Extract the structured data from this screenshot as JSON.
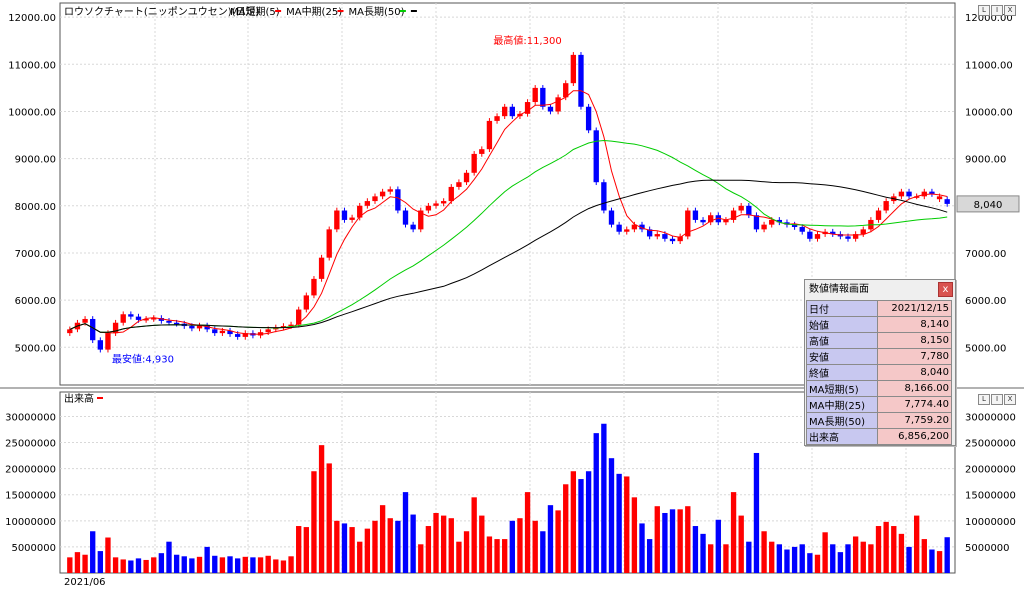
{
  "price_pane": {
    "title": "ロウソクチャート(ニッポンユウセン)(日足)",
    "legend": [
      {
        "label": "MA短期(5)",
        "color": "#ff0000"
      },
      {
        "label": "MA中期(25)",
        "color": "#ff0000"
      },
      {
        "label": "MA長期(50)",
        "color": "#00cc00"
      }
    ],
    "legend_tail_color": "#000000",
    "high_label": "最高値:11,300",
    "low_label": "最安値:4,930",
    "last_price": "8,040",
    "axis_ticks": [
      "12000.00",
      "11000.00",
      "10000.00",
      "9000.00",
      "8000.00",
      "7000.00",
      "6000.00",
      "5000.00"
    ]
  },
  "volume_pane": {
    "title": "出来高",
    "axis_ticks": [
      "30000000",
      "25000000",
      "20000000",
      "15000000",
      "10000000",
      "5000000"
    ]
  },
  "x_axis": {
    "start_label": "2021/06"
  },
  "window_buttons": [
    "L",
    "I",
    "X"
  ],
  "info_panel": {
    "title": "数値情報画面",
    "close_label": "x",
    "rows": [
      {
        "label": "日付",
        "value": "2021/12/15"
      },
      {
        "label": "始値",
        "value": "8,140"
      },
      {
        "label": "高値",
        "value": "8,150"
      },
      {
        "label": "安値",
        "value": "7,780"
      },
      {
        "label": "終値",
        "value": "8,040"
      },
      {
        "label": "MA短期(5)",
        "value": "8,166.00"
      },
      {
        "label": "MA中期(25)",
        "value": "7,774.40"
      },
      {
        "label": "MA長期(50)",
        "value": "7,759.20"
      },
      {
        "label": "出来高",
        "value": "6,856,200"
      }
    ]
  },
  "colors": {
    "up": "#ff0000",
    "down": "#0000ff",
    "ma_short": "#ff0000",
    "ma_mid": "#00cc00",
    "ma_long": "#000000",
    "grid": "#d8d8d8"
  },
  "chart_data": {
    "type": "candlestick",
    "title": "ロウソクチャート(ニッポンユウセン)(日足)",
    "ylim": [
      4200,
      12300
    ],
    "volume_ylim": [
      0,
      32000000
    ],
    "grid": true,
    "ohlc_approx_close": [
      5380,
      5520,
      5600,
      5150,
      4950,
      5300,
      5520,
      5700,
      5650,
      5580,
      5600,
      5620,
      5560,
      5520,
      5500,
      5450,
      5400,
      5460,
      5380,
      5300,
      5350,
      5280,
      5220,
      5300,
      5250,
      5320,
      5380,
      5420,
      5450,
      5480,
      5800,
      6100,
      6450,
      6900,
      7500,
      7900,
      7700,
      7750,
      8000,
      8100,
      8200,
      8300,
      8350,
      7900,
      7600,
      7500,
      7900,
      8000,
      8050,
      8100,
      8400,
      8500,
      8700,
      9100,
      9200,
      9800,
      9900,
      10100,
      9900,
      9950,
      10200,
      10500,
      10100,
      10000,
      10300,
      10600,
      11200,
      10100,
      9600,
      8500,
      7900,
      7600,
      7450,
      7500,
      7600,
      7500,
      7350,
      7400,
      7300,
      7250,
      7350,
      7900,
      7700,
      7650,
      7800,
      7650,
      7700,
      7900,
      8000,
      7800,
      7500,
      7600,
      7700,
      7650,
      7600,
      7550,
      7450,
      7300,
      7400,
      7450,
      7400,
      7350,
      7300,
      7400,
      7500,
      7700,
      7900,
      8100,
      8200,
      8300,
      8200,
      8200,
      8300,
      8250,
      8200,
      8040
    ],
    "ohlc_approx_open": [
      5300,
      5380,
      5520,
      5600,
      5150,
      4950,
      5300,
      5520,
      5700,
      5650,
      5580,
      5600,
      5620,
      5560,
      5520,
      5500,
      5450,
      5400,
      5460,
      5380,
      5300,
      5350,
      5280,
      5220,
      5300,
      5250,
      5320,
      5380,
      5420,
      5450,
      5480,
      5800,
      6100,
      6450,
      6900,
      7500,
      7900,
      7700,
      7750,
      8000,
      8100,
      8200,
      8300,
      8350,
      7900,
      7600,
      7500,
      7900,
      8000,
      8050,
      8100,
      8400,
      8500,
      8700,
      9100,
      9200,
      9800,
      9900,
      10100,
      9900,
      9950,
      10200,
      10500,
      10100,
      10000,
      10300,
      10600,
      11200,
      10100,
      9600,
      8500,
      7900,
      7600,
      7450,
      7500,
      7600,
      7500,
      7350,
      7400,
      7300,
      7250,
      7350,
      7900,
      7700,
      7650,
      7800,
      7650,
      7700,
      7900,
      8000,
      7800,
      7500,
      7600,
      7700,
      7650,
      7600,
      7550,
      7450,
      7300,
      7400,
      7450,
      7400,
      7350,
      7300,
      7400,
      7500,
      7700,
      7900,
      8100,
      8200,
      8300,
      8200,
      8200,
      8300,
      8140,
      8140
    ],
    "volume": [
      3000000,
      4000000,
      3500000,
      8000000,
      4200000,
      6800000,
      3000000,
      2600000,
      2400000,
      2800000,
      2500000,
      3000000,
      3800000,
      6000000,
      3500000,
      3200000,
      2800000,
      3100000,
      5000000,
      3300000,
      3000000,
      3200000,
      2800000,
      3100000,
      3000000,
      3000000,
      3300000,
      2600000,
      2400000,
      3200000,
      9000000,
      8800000,
      19500000,
      24500000,
      21000000,
      10000000,
      9500000,
      8800000,
      6000000,
      8500000,
      10000000,
      13000000,
      10500000,
      10000000,
      15500000,
      11200000,
      5500000,
      9000000,
      11500000,
      11000000,
      10500000,
      6000000,
      8000000,
      14500000,
      11000000,
      7000000,
      6500000,
      6500000,
      10000000,
      10500000,
      15500000,
      10000000,
      8000000,
      13000000,
      12000000,
      17000000,
      19500000,
      18000000,
      19500000,
      26800000,
      28600000,
      22000000,
      19000000,
      18500000,
      14500000,
      9500000,
      6500000,
      12800000,
      11500000,
      12200000,
      12200000,
      12800000,
      9000000,
      7500000,
      5500000,
      10200000,
      5500000,
      15500000,
      11000000,
      6000000,
      23000000,
      8000000,
      6000000,
      5500000,
      4500000,
      5000000,
      5500000,
      3800000,
      3500000,
      7800000,
      5500000,
      4000000,
      5500000,
      7000000,
      6000000,
      5500000,
      9000000,
      9800000,
      9000000,
      7500000,
      5000000,
      11000000,
      6500000,
      4500000,
      4200000,
      6856200
    ]
  }
}
